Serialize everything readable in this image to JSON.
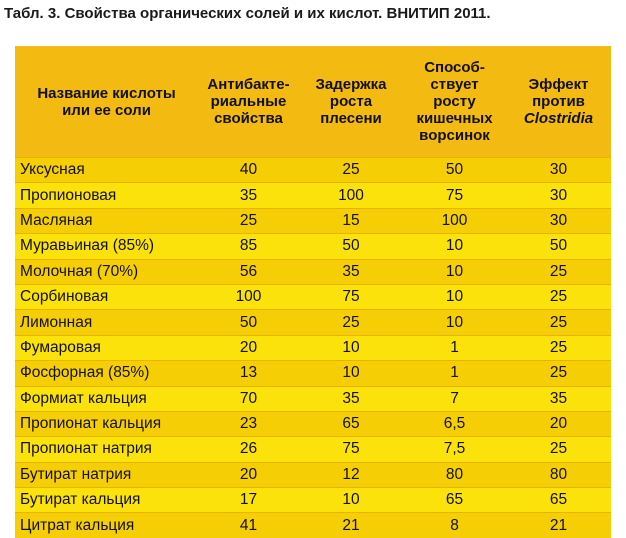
{
  "caption": "Табл. 3. Свойства органических солей и их кислот. ВНИТИП 2011.",
  "headers": {
    "name_line1": "Название кислоты",
    "name_line2": "или ее соли",
    "antibac_line1": "Антибакте-",
    "antibac_line2": "риальные",
    "antibac_line3": "свойства",
    "mold_line1": "Задержка",
    "mold_line2": "роста",
    "mold_line3": "плесени",
    "villi_line1": "Способ-",
    "villi_line2": "ствует",
    "villi_line3": "росту",
    "villi_line4": "кишечных",
    "villi_line5": "ворсинок",
    "clost_line1": "Эффект",
    "clost_line2": "против",
    "clost_line3": "Clostridia"
  },
  "rows": [
    {
      "name": "Уксусная",
      "antibac": "40",
      "mold": "25",
      "villi": "50",
      "clost": "30"
    },
    {
      "name": "Пропионовая",
      "antibac": "35",
      "mold": "100",
      "villi": "75",
      "clost": "30"
    },
    {
      "name": "Масляная",
      "antibac": "25",
      "mold": "15",
      "villi": "100",
      "clost": "30"
    },
    {
      "name": "Муравьиная (85%)",
      "antibac": "85",
      "mold": "50",
      "villi": "10",
      "clost": "50"
    },
    {
      "name": "Молочная (70%)",
      "antibac": "56",
      "mold": "35",
      "villi": "10",
      "clost": "25"
    },
    {
      "name": "Сорбиновая",
      "antibac": "100",
      "mold": "75",
      "villi": "10",
      "clost": "25"
    },
    {
      "name": "Лимонная",
      "antibac": "50",
      "mold": "25",
      "villi": "10",
      "clost": "25"
    },
    {
      "name": "Фумаровая",
      "antibac": "20",
      "mold": "10",
      "villi": "1",
      "clost": "25"
    },
    {
      "name": "Фосфорная (85%)",
      "antibac": "13",
      "mold": "10",
      "villi": "1",
      "clost": "25"
    },
    {
      "name": "Формиат кальция",
      "antibac": "70",
      "mold": "35",
      "villi": "7",
      "clost": "35"
    },
    {
      "name": "Пропионат кальция",
      "antibac": "23",
      "mold": "65",
      "villi": "6,5",
      "clost": "20"
    },
    {
      "name": "Пропионат натрия",
      "antibac": "26",
      "mold": "75",
      "villi": "7,5",
      "clost": "25"
    },
    {
      "name": "Бутират натрия",
      "antibac": "20",
      "mold": "12",
      "villi": "80",
      "clost": "80"
    },
    {
      "name": "Бутират кальция",
      "antibac": "17",
      "mold": "10",
      "villi": "65",
      "clost": "65"
    },
    {
      "name": "Цитрат кальция",
      "antibac": "41",
      "mold": "21",
      "villi": "8",
      "clost": "21"
    }
  ],
  "colors": {
    "header_bg": "#f3ba12",
    "row_odd_bg": "#f6ce06",
    "row_even_bg": "#fbe20a"
  }
}
